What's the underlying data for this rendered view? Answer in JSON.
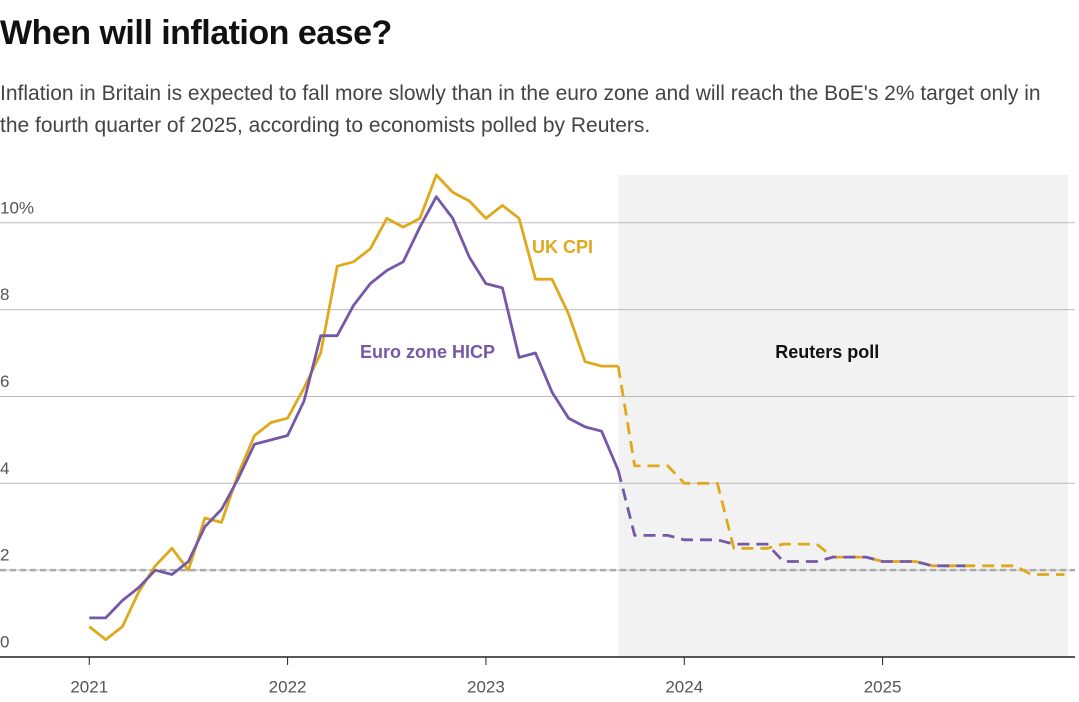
{
  "chart_data": {
    "type": "line",
    "title": "When will inflation ease?",
    "subtitle": "Inflation in Britain is expected to fall more slowly than in the euro zone and will reach the BoE's 2% target only in the fourth quarter of 2025, according to economists polled by Reuters.",
    "x": [
      2021,
      2021.083,
      2021.167,
      2021.25,
      2021.333,
      2021.417,
      2021.5,
      2021.583,
      2021.667,
      2021.75,
      2021.833,
      2021.917,
      2022,
      2022.083,
      2022.167,
      2022.25,
      2022.333,
      2022.417,
      2022.5,
      2022.583,
      2022.667,
      2022.75,
      2022.833,
      2022.917,
      2023,
      2023.083,
      2023.167,
      2023.25,
      2023.333,
      2023.417,
      2023.5,
      2023.583,
      2023.667,
      2023.75,
      2023.833,
      2023.917,
      2024,
      2024.083,
      2024.167,
      2024.25,
      2024.333,
      2024.417,
      2024.5,
      2024.583,
      2024.667,
      2024.75,
      2024.833,
      2024.917,
      2025,
      2025.083,
      2025.167,
      2025.25,
      2025.333,
      2025.417,
      2025.5,
      2025.583,
      2025.667,
      2025.75,
      2025.833,
      2025.917
    ],
    "series": [
      {
        "name": "UK CPI",
        "color": "#e0a91b",
        "values": [
          0.7,
          0.4,
          0.7,
          1.5,
          2.1,
          2.5,
          2.0,
          3.2,
          3.1,
          4.2,
          5.1,
          5.4,
          5.5,
          6.2,
          7.0,
          9.0,
          9.1,
          9.4,
          10.1,
          9.9,
          10.1,
          11.1,
          10.7,
          10.5,
          10.1,
          10.4,
          10.1,
          8.7,
          8.7,
          7.9,
          6.8,
          6.7,
          6.7,
          4.4,
          4.4,
          4.4,
          4.0,
          4.0,
          4.0,
          2.5,
          2.5,
          2.5,
          2.6,
          2.6,
          2.6,
          2.3,
          2.3,
          2.3,
          2.2,
          2.2,
          2.2,
          2.1,
          2.1,
          2.1,
          2.1,
          2.1,
          2.1,
          1.9,
          1.9,
          1.9
        ]
      },
      {
        "name": "Euro zone HICP",
        "color": "#7558a6",
        "values": [
          0.9,
          0.9,
          1.3,
          1.6,
          2.0,
          1.9,
          2.2,
          3.0,
          3.4,
          4.1,
          4.9,
          5.0,
          5.1,
          5.9,
          7.4,
          7.4,
          8.1,
          8.6,
          8.9,
          9.1,
          9.9,
          10.6,
          10.1,
          9.2,
          8.6,
          8.5,
          6.9,
          7.0,
          6.1,
          5.5,
          5.3,
          5.2,
          4.3,
          2.8,
          2.8,
          2.8,
          2.7,
          2.7,
          2.7,
          2.6,
          2.6,
          2.6,
          2.2,
          2.2,
          2.2,
          2.3,
          2.3,
          2.3,
          2.2,
          2.2,
          2.2,
          2.1,
          2.1,
          2.1,
          null,
          null,
          null,
          null,
          null,
          null
        ]
      }
    ],
    "forecast": {
      "start": 2023.667,
      "label": "Reuters poll",
      "color": "#f2f2f2"
    },
    "target": 2,
    "xlim": [
      2020.55,
      2025.97
    ],
    "xticks": [
      2021,
      2022,
      2023,
      2024,
      2025
    ],
    "ylim": [
      0,
      11.1
    ],
    "yticks": [
      0,
      2,
      4,
      6,
      8,
      {
        "value": 10,
        "label": "10%"
      }
    ],
    "grid": true
  }
}
